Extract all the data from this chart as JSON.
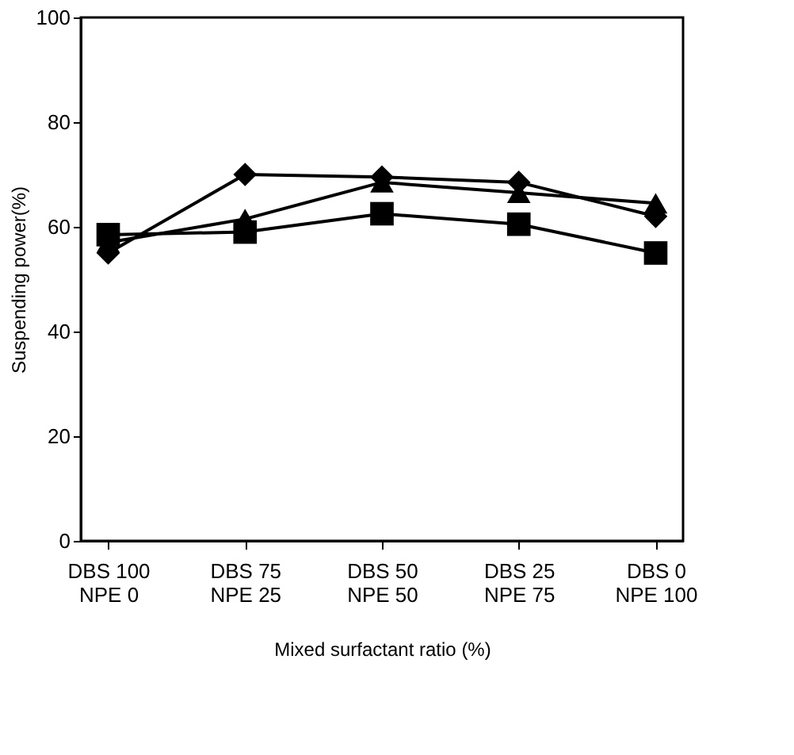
{
  "chart_data": {
    "type": "line",
    "xlabel": "Mixed surfactant ratio (%)",
    "ylabel": "Suspending power(%)",
    "categories": [
      "DBS 100\nNPE 0",
      "DBS 75\nNPE 25",
      "DBS 50\nNPE 50",
      "DBS 25\nNPE 75",
      "DBS 0\nNPE 100"
    ],
    "series": [
      {
        "color": "#000000",
        "marker": "diamond",
        "values": [
          55,
          70,
          69.5,
          68.5,
          62
        ]
      },
      {
        "color": "#000000",
        "marker": "triangle",
        "values": [
          57,
          61.5,
          68.5,
          66.5,
          64.5
        ]
      },
      {
        "color": "#000000",
        "marker": "square",
        "values": [
          58.5,
          59,
          62.5,
          60.5,
          55
        ]
      }
    ],
    "ylim": [
      0,
      100
    ],
    "yticks": [
      0,
      20,
      40,
      60,
      80,
      100
    ],
    "grid": false
  }
}
